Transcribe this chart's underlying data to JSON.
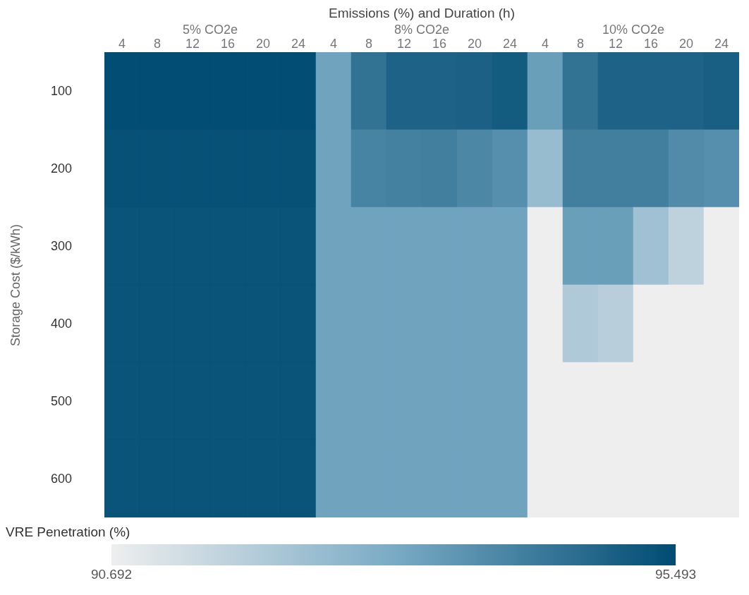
{
  "chart_data": {
    "type": "heatmap",
    "xlabel": "Emissions (%) and Duration (h)",
    "annotations": [
      "5% CO2e",
      "8% CO2e",
      "10% CO2e"
    ],
    "ylabel": "Storage Cost ($/kWh)",
    "clabel": "VRE Penetration (%)",
    "categories": [
      "4",
      "8",
      "12",
      "16",
      "20",
      "24",
      "4",
      "8",
      "12",
      "16",
      "20",
      "24",
      "4",
      "8",
      "12",
      "16",
      "20",
      "24"
    ],
    "y_categories": [
      "100",
      "200",
      "300",
      "400",
      "500",
      "600"
    ],
    "cells": [
      [
        95.45,
        95.45,
        95.45,
        95.45,
        95.45,
        95.45,
        93.3,
        94.5,
        94.9,
        94.9,
        94.95,
        95.1,
        93.4,
        94.5,
        94.9,
        94.9,
        94.9,
        95.0
      ],
      [
        95.35,
        95.35,
        95.35,
        95.35,
        95.35,
        95.35,
        93.3,
        94.1,
        94.15,
        94.2,
        94.0,
        93.8,
        92.5,
        94.2,
        94.2,
        94.2,
        93.9,
        93.8
      ],
      [
        95.3,
        95.3,
        95.3,
        95.3,
        95.3,
        95.3,
        93.3,
        93.3,
        93.3,
        93.3,
        93.3,
        93.3,
        90.7,
        93.4,
        93.4,
        92.3,
        91.7,
        90.7
      ],
      [
        95.3,
        95.3,
        95.3,
        95.3,
        95.3,
        95.3,
        93.3,
        93.3,
        93.3,
        93.3,
        93.3,
        93.3,
        90.7,
        92.0,
        91.8,
        90.7,
        90.7,
        90.7
      ],
      [
        95.3,
        95.3,
        95.3,
        95.3,
        95.3,
        95.3,
        93.3,
        93.3,
        93.3,
        93.3,
        93.3,
        93.3,
        90.7,
        90.7,
        90.7,
        90.7,
        90.7,
        90.7
      ],
      [
        95.3,
        95.3,
        95.3,
        95.3,
        95.3,
        95.3,
        93.3,
        93.3,
        93.3,
        93.3,
        93.3,
        93.3,
        90.7,
        90.7,
        90.7,
        90.7,
        90.7,
        90.7
      ]
    ],
    "clim": [
      90.692,
      95.493
    ],
    "cticks": [
      90.692,
      95.493
    ]
  }
}
